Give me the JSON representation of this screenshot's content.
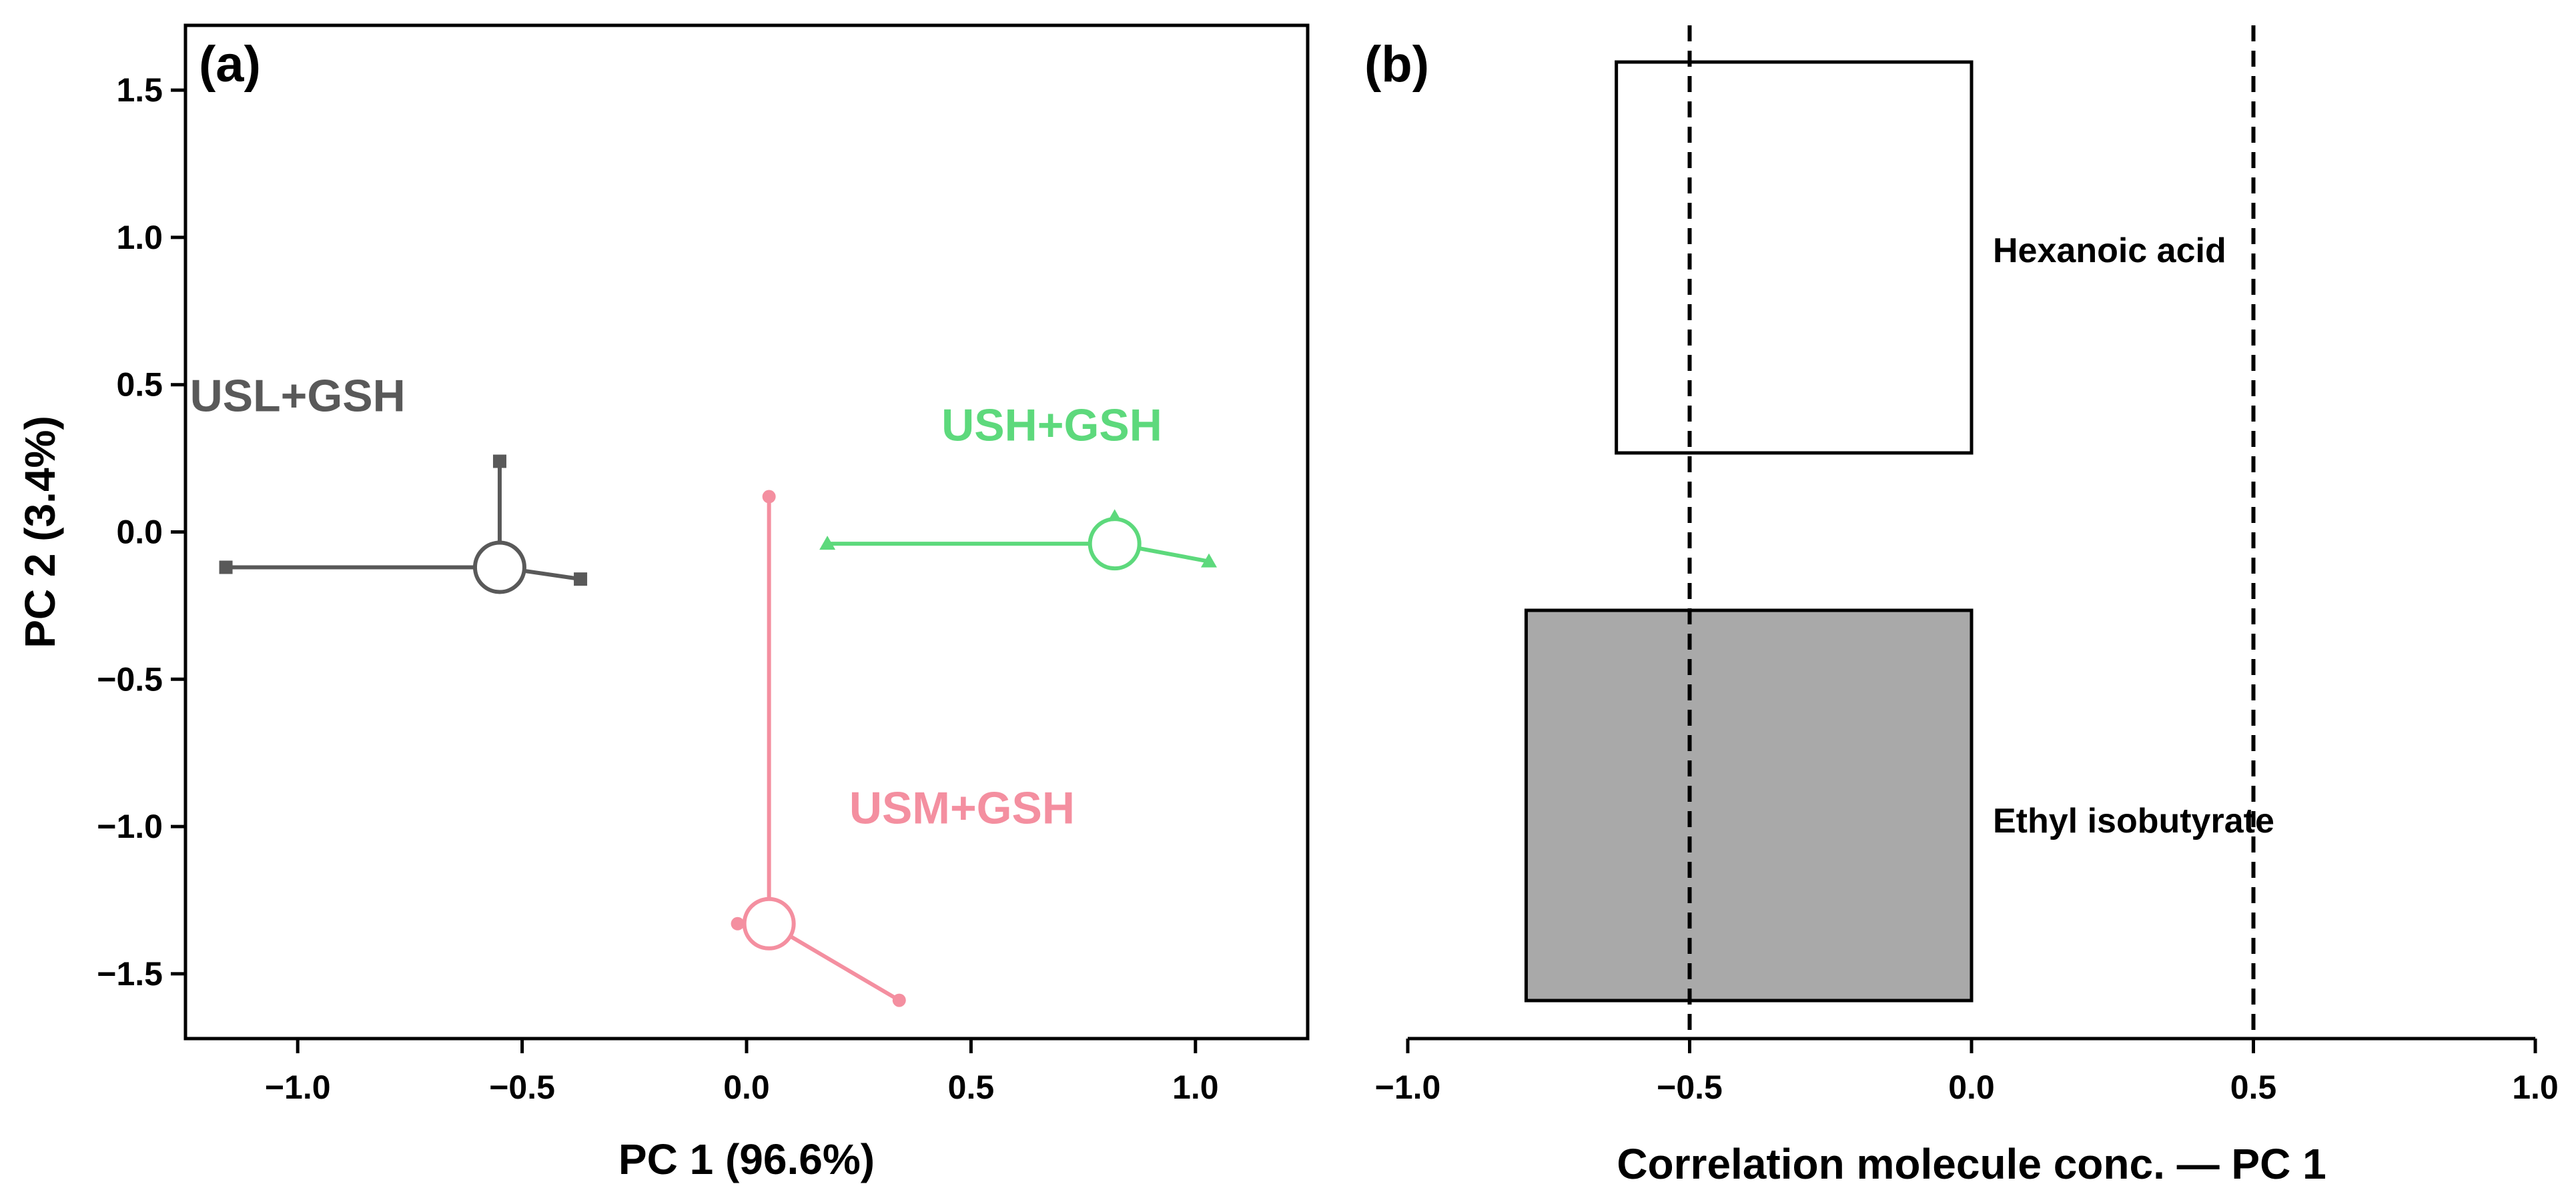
{
  "chart_data": [
    {
      "panel": "(a)",
      "type": "scatter",
      "xlabel": "PC 1 (96.6%)",
      "ylabel": "PC 2 (3.4%)",
      "xlim": [
        -1.25,
        1.25
      ],
      "ylim": [
        -1.72,
        1.72
      ],
      "xticks": [
        -1.0,
        -0.5,
        0.0,
        0.5,
        1.0
      ],
      "xtick_labels": [
        "−1.0",
        "−0.5",
        "0.0",
        "0.5",
        "1.0"
      ],
      "yticks": [
        -1.5,
        -1.0,
        -0.5,
        0.0,
        0.5,
        1.0,
        1.5
      ],
      "ytick_labels": [
        "−1.5",
        "−1.0",
        "−0.5",
        "0.0",
        "0.5",
        "1.0",
        "1.5"
      ],
      "grid": false,
      "groups": [
        {
          "name": "USL+GSH",
          "color": "#595959",
          "marker": "square",
          "centroid": [
            -0.55,
            -0.12
          ],
          "points": [
            [
              -1.16,
              -0.12
            ],
            [
              -0.55,
              0.24
            ],
            [
              -0.37,
              -0.16
            ]
          ],
          "label_pos": [
            -1.0,
            0.41
          ]
        },
        {
          "name": "USH+GSH",
          "color": "#5dd97c",
          "marker": "triangle",
          "centroid": [
            0.82,
            -0.04
          ],
          "points": [
            [
              0.18,
              -0.04
            ],
            [
              0.82,
              0.05
            ],
            [
              1.03,
              -0.1
            ]
          ],
          "label_pos": [
            0.68,
            0.31
          ]
        },
        {
          "name": "USM+GSH",
          "color": "#f48fa0",
          "marker": "circle",
          "centroid": [
            0.05,
            -1.33
          ],
          "points": [
            [
              0.05,
              0.12
            ],
            [
              -0.02,
              -1.33
            ],
            [
              0.34,
              -1.59
            ]
          ],
          "label_pos": [
            0.48,
            -0.99
          ]
        }
      ]
    },
    {
      "panel": "(b)",
      "type": "bar",
      "orientation": "horizontal",
      "xlabel": "Correlation molecule conc. — PC 1",
      "xlim": [
        -1.0,
        1.0
      ],
      "xticks": [
        -1.0,
        -0.5,
        0.0,
        0.5,
        1.0
      ],
      "xtick_labels": [
        "−1.0",
        "−0.5",
        "0.0",
        "0.5",
        "1.0"
      ],
      "reference_lines": [
        -0.5,
        0.5
      ],
      "categories": [
        "Hexanoic acid",
        "Ethyl isobutyrate"
      ],
      "values": [
        -0.63,
        -0.79
      ],
      "bar_colors": [
        "#ffffff",
        "#a9a9a9"
      ]
    }
  ]
}
